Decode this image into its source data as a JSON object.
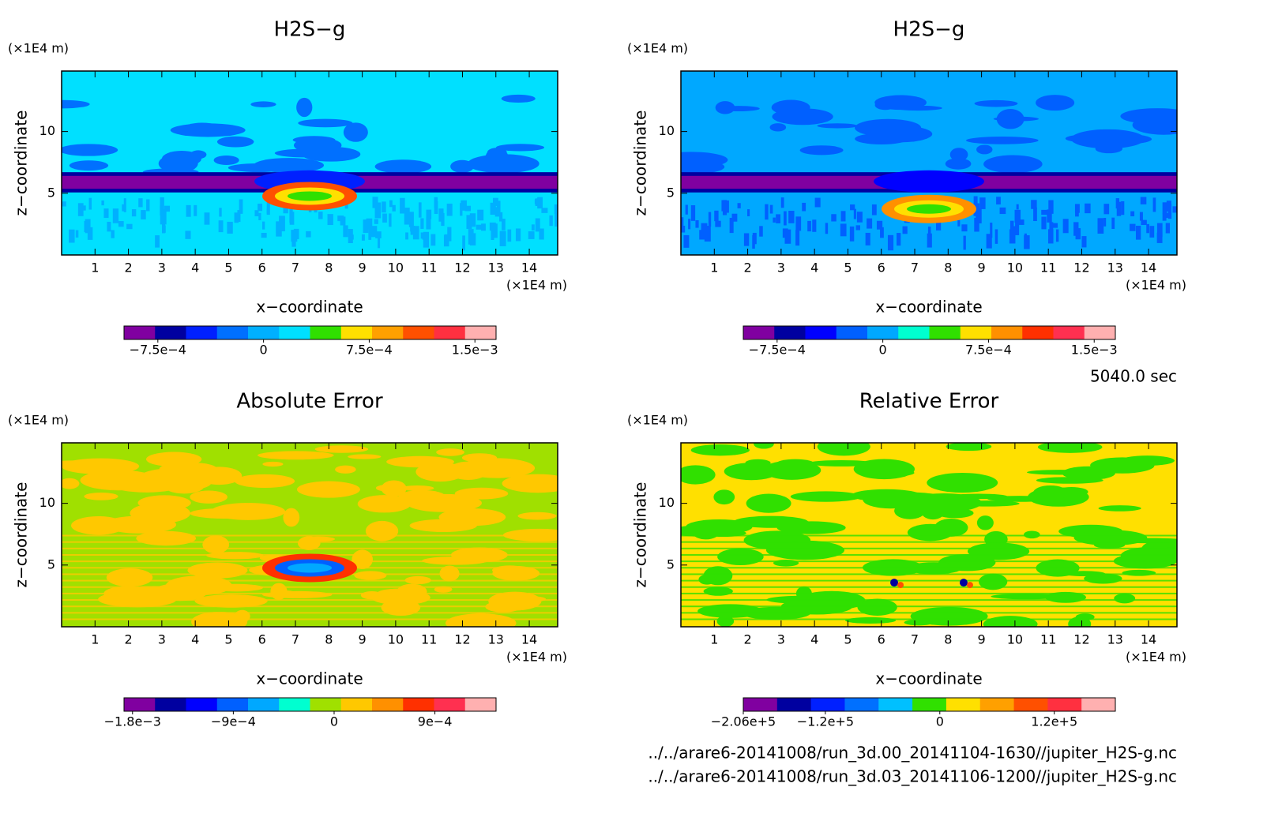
{
  "chart_data": [
    {
      "type": "contour",
      "title": "H2S−g",
      "x_label": "x−coordinate",
      "y_label": "z−coordinate",
      "x_unit": "(×1E4 m)",
      "y_unit": "(×1E4 m)",
      "xlim": [
        0,
        14.85
      ],
      "ylim": [
        0,
        14.9
      ],
      "xticks": [
        1,
        2,
        3,
        4,
        5,
        6,
        7,
        8,
        9,
        10,
        11,
        12,
        13,
        14
      ],
      "yticks": [
        5,
        10
      ],
      "colorbar_colors": [
        "#8000a0",
        "#0000a0",
        "#0020ff",
        "#0070ff",
        "#00b0ff",
        "#00e0ff",
        "#30e000",
        "#ffe000",
        "#ffa000",
        "#ff5000",
        "#ff3040",
        "#ffb0b0"
      ],
      "clim": [
        -0.00099,
        0.00165
      ],
      "cticks": [
        {
          "value": -0.00075,
          "label": "−7.5e−4"
        },
        0,
        {
          "value": 0.00075,
          "label": "7.5e−4"
        },
        {
          "value": 0.0015,
          "label": "1.5e−3"
        }
      ]
    },
    {
      "type": "contour",
      "title": "H2S−g",
      "x_label": "x−coordinate",
      "y_label": "z−coordinate",
      "x_unit": "(×1E4 m)",
      "y_unit": "(×1E4 m)",
      "xlim": [
        0,
        14.85
      ],
      "ylim": [
        0,
        14.9
      ],
      "xticks": [
        1,
        2,
        3,
        4,
        5,
        6,
        7,
        8,
        9,
        10,
        11,
        12,
        13,
        14
      ],
      "yticks": [
        5,
        10
      ],
      "colorbar_colors": [
        "#8000a0",
        "#0000a0",
        "#0000ff",
        "#0060ff",
        "#00a8ff",
        "#00ffd0",
        "#30e000",
        "#ffe000",
        "#ff9000",
        "#ff3000",
        "#ff3050",
        "#ffb0b0"
      ],
      "clim": [
        -0.00099,
        0.00165
      ],
      "cticks": [
        {
          "value": -0.00075,
          "label": "−7.5e−4"
        },
        0,
        {
          "value": 0.00075,
          "label": "7.5e−4"
        },
        {
          "value": 0.0015,
          "label": "1.5e−3"
        }
      ]
    },
    {
      "type": "contour",
      "title": "Absolute Error",
      "x_label": "x−coordinate",
      "y_label": "z−coordinate",
      "x_unit": "(×1E4 m)",
      "y_unit": "(×1E4 m)",
      "xlim": [
        0,
        14.85
      ],
      "ylim": [
        0,
        14.9
      ],
      "xticks": [
        1,
        2,
        3,
        4,
        5,
        6,
        7,
        8,
        9,
        10,
        11,
        12,
        13,
        14
      ],
      "yticks": [
        5,
        10
      ],
      "colorbar_colors": [
        "#8000a0",
        "#0000a0",
        "#0000ff",
        "#0060ff",
        "#00a8ff",
        "#00ffd0",
        "#a0e000",
        "#ffc800",
        "#ff9000",
        "#ff3000",
        "#ff3050",
        "#ffb0b0"
      ],
      "clim": [
        -0.001876,
        0.001446
      ],
      "cticks": [
        {
          "value": -0.0018,
          "label": "−1.8e−3"
        },
        {
          "value": -0.0009,
          "label": "−9e−4"
        },
        0,
        {
          "value": 0.0009,
          "label": "9e−4"
        }
      ]
    },
    {
      "type": "contour",
      "title": "Relative Error",
      "x_label": "x−coordinate",
      "y_label": "z−coordinate",
      "x_unit": "(×1E4 m)",
      "y_unit": "(×1E4 m)",
      "xlim": [
        0,
        14.85
      ],
      "ylim": [
        0,
        14.9
      ],
      "xticks": [
        1,
        2,
        3,
        4,
        5,
        6,
        7,
        8,
        9,
        10,
        11,
        12,
        13,
        14
      ],
      "yticks": [
        5,
        10
      ],
      "colorbar_colors": [
        "#8000a0",
        "#0000a0",
        "#0020ff",
        "#0070ff",
        "#00c0ff",
        "#30e000",
        "#ffe000",
        "#ffa000",
        "#ff5000",
        "#ff3040",
        "#ffb0b0"
      ],
      "clim": [
        -206000,
        184000
      ],
      "cticks": [
        {
          "value": -206000,
          "label": "−2.06e+5"
        },
        {
          "value": -120000,
          "label": "−1.2e+5"
        },
        0,
        {
          "value": 120000,
          "label": "1.2e+5"
        }
      ]
    }
  ],
  "time_label": "5040.0 sec",
  "file_paths": [
    "../../arare6-20141008/run_3d.00_20141104-1630//jupiter_H2S-g.nc",
    "../../arare6-20141008/run_3d.03_20141106-1200//jupiter_H2S-g.nc"
  ]
}
